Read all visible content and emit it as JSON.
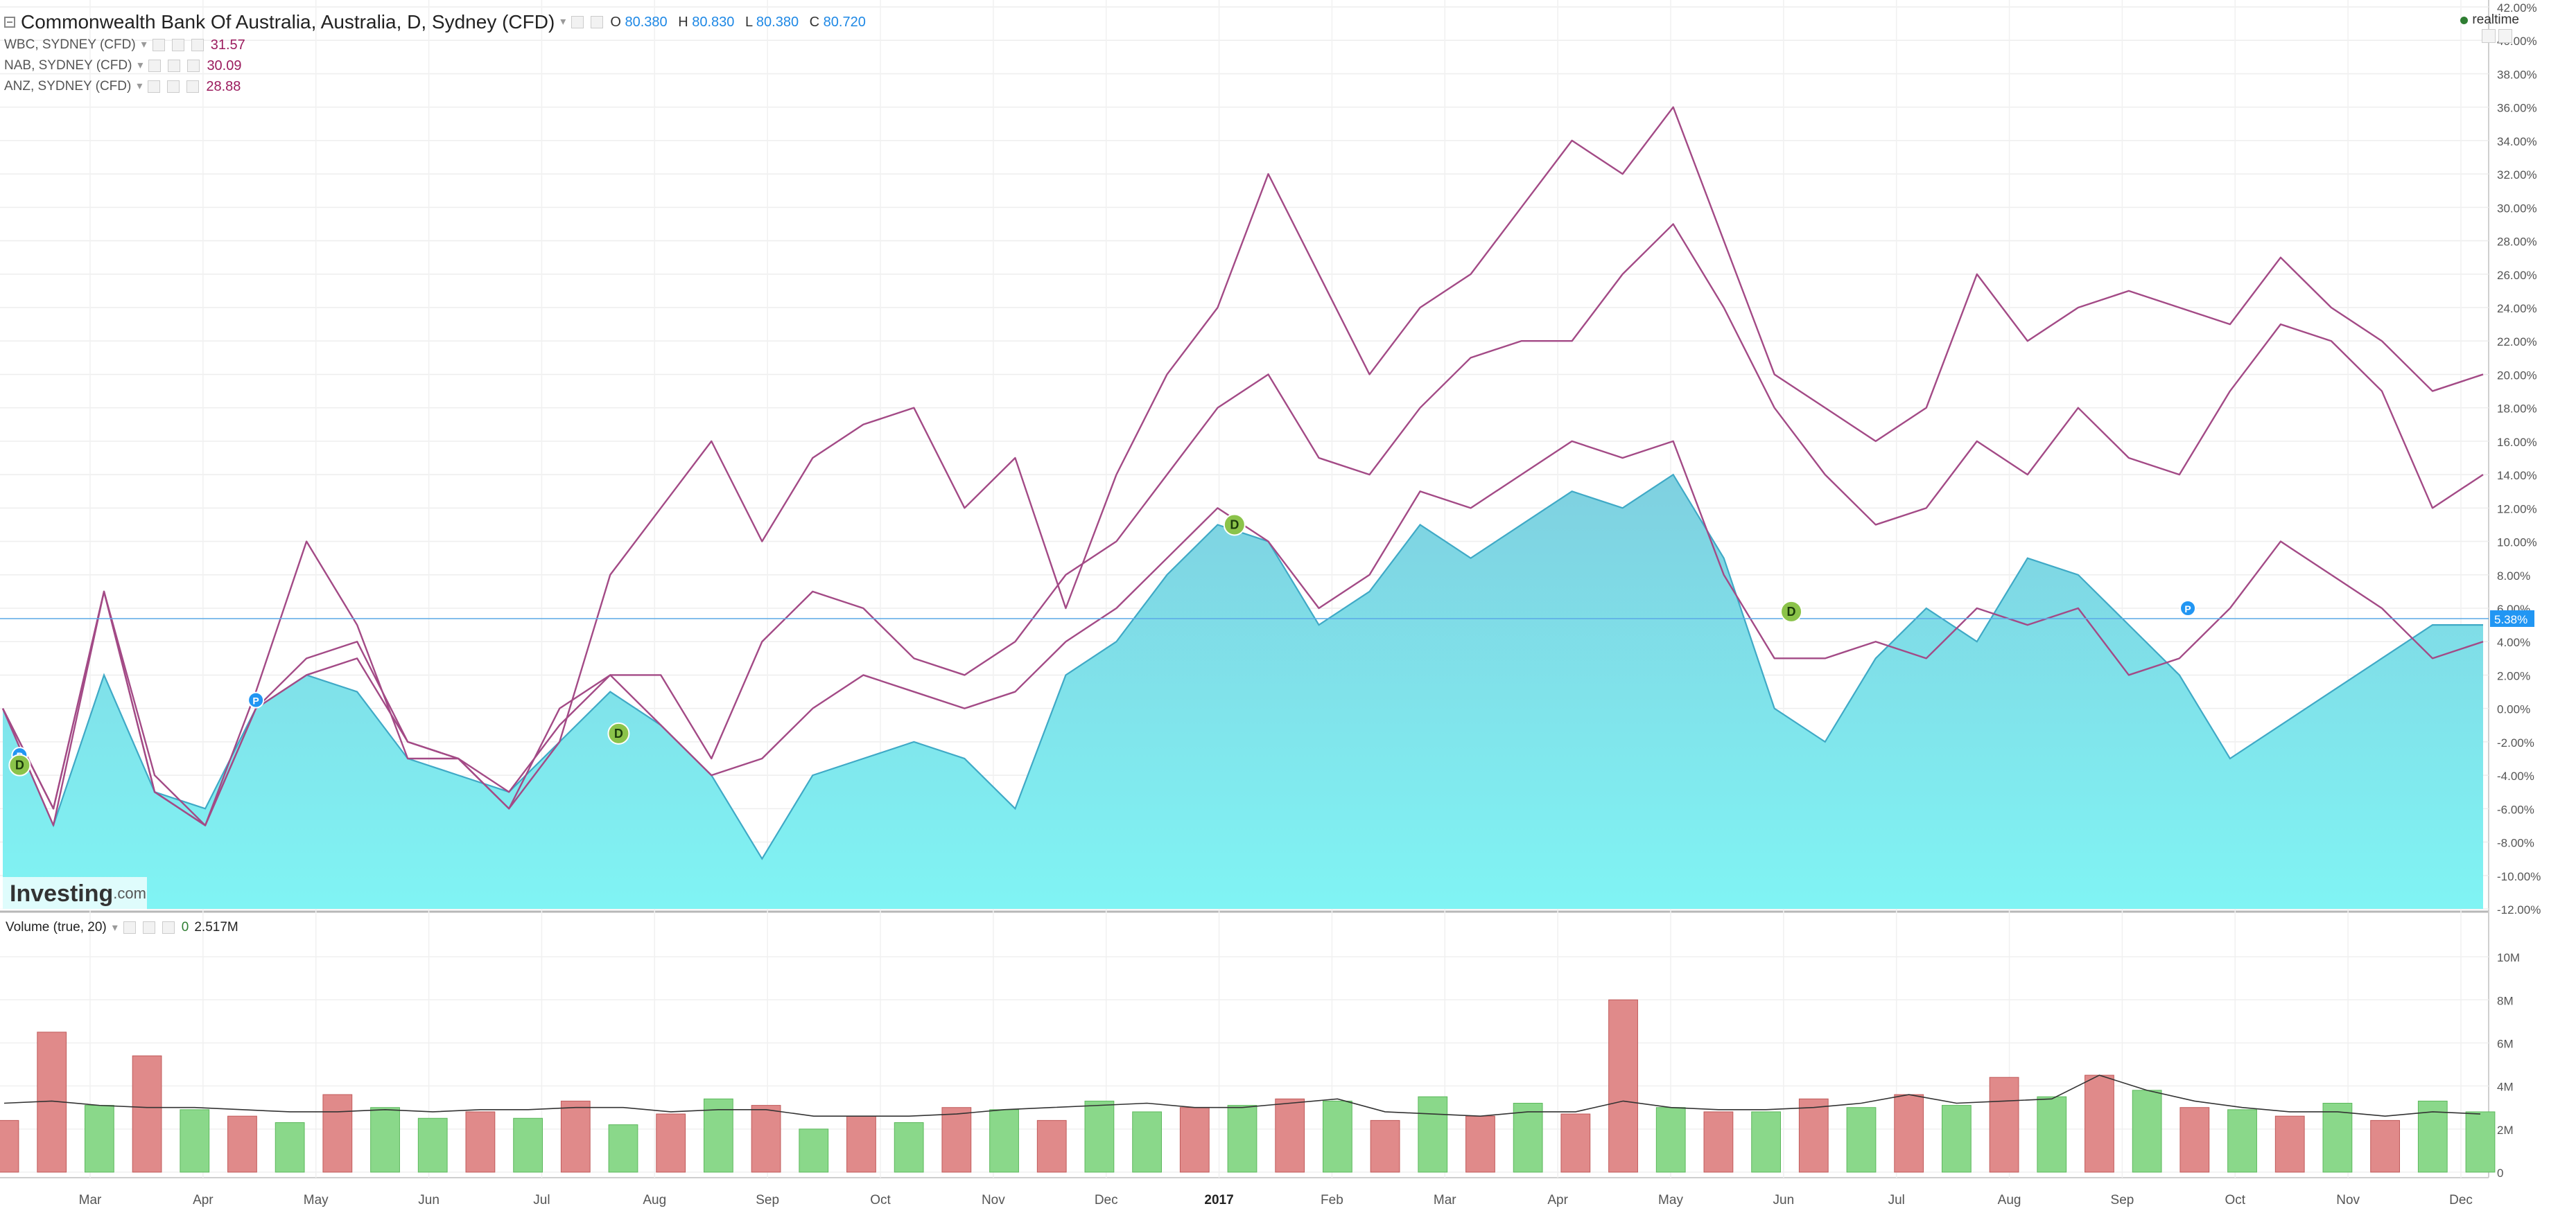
{
  "legend": {
    "main_title": "Commonwealth Bank Of Australia, Australia, D, Sydney (CFD)",
    "ohlc": {
      "o_label": "O",
      "o": "80.380",
      "h_label": "H",
      "h": "80.830",
      "l_label": "L",
      "l": "80.380",
      "c_label": "C",
      "c": "80.720"
    },
    "series": [
      {
        "label": "WBC, SYDNEY (CFD)",
        "value": "31.57"
      },
      {
        "label": "NAB, SYDNEY (CFD)",
        "value": "30.09"
      },
      {
        "label": "ANZ, SYDNEY (CFD)",
        "value": "28.88"
      }
    ]
  },
  "realtime_label": "realtime",
  "watermark": {
    "brand": "Investing",
    "suffix": ".com"
  },
  "volume_legend": {
    "label": "Volume (true, 20)",
    "value_prefix": "0",
    "value": "2.517M"
  },
  "colors": {
    "area_top": "#7fd0e0",
    "area_bottom": "#80f4f4",
    "area_line": "#3fa9c6",
    "compare": "#a34a86",
    "vol_up": "#8ad88a",
    "vol_down": "#e08a8a",
    "price_line": "#5aa9e6",
    "badge_blue": "#2196f3",
    "badge_green": "#8bc34a"
  },
  "chart_data": [
    {
      "type": "line",
      "title": "Commonwealth Bank Of Australia, Australia, D, Sydney (CFD)",
      "y_unit": "%",
      "ylim": [
        -12,
        42
      ],
      "y_ticks": [
        "42.00%",
        "40.00%",
        "38.00%",
        "36.00%",
        "34.00%",
        "32.00%",
        "30.00%",
        "28.00%",
        "26.00%",
        "24.00%",
        "22.00%",
        "20.00%",
        "18.00%",
        "16.00%",
        "14.00%",
        "12.00%",
        "10.00%",
        "8.00%",
        "6.00%",
        "4.00%",
        "2.00%",
        "0.00%",
        "-2.00%",
        "-4.00%",
        "-6.00%",
        "-8.00%",
        "-10.00%",
        "-12.00%"
      ],
      "x_ticks": [
        "Mar",
        "Apr",
        "May",
        "Jun",
        "Jul",
        "Aug",
        "Sep",
        "Oct",
        "Nov",
        "Dec",
        "2017",
        "Feb",
        "Mar",
        "Apr",
        "May",
        "Jun",
        "Jul",
        "Aug",
        "Sep",
        "Oct",
        "Nov",
        "Dec"
      ],
      "x": [
        0,
        6,
        12,
        18,
        24,
        30,
        36,
        42,
        48,
        54,
        60,
        66,
        72,
        78,
        84,
        90,
        96,
        102,
        108,
        114,
        120,
        126,
        132,
        138,
        144,
        150,
        156,
        162,
        168,
        174,
        180,
        186,
        192,
        198,
        204,
        210,
        216,
        222,
        228,
        234,
        240,
        246,
        252,
        258,
        264,
        270,
        276,
        282,
        288,
        294
      ],
      "current_value_label": "5.38%",
      "current_value": 5.38,
      "series": [
        {
          "name": "WBC, SYDNEY (CFD)",
          "role": "compare",
          "values": [
            0,
            -7,
            7,
            -4,
            -7,
            1,
            10,
            5,
            -3,
            -3,
            -6,
            -2,
            8,
            12,
            16,
            10,
            15,
            17,
            18,
            12,
            15,
            6,
            14,
            20,
            24,
            32,
            26,
            20,
            24,
            26,
            30,
            34,
            32,
            36,
            28,
            20,
            18,
            16,
            18,
            26,
            22,
            24,
            25,
            24,
            23,
            27,
            24,
            22,
            19,
            20
          ]
        },
        {
          "name": "NAB, SYDNEY (CFD)",
          "role": "compare",
          "values": [
            0,
            -6,
            7,
            -5,
            -7,
            0,
            3,
            4,
            -2,
            -3,
            -6,
            0,
            2,
            2,
            -3,
            4,
            7,
            6,
            3,
            2,
            4,
            8,
            10,
            14,
            18,
            20,
            15,
            14,
            18,
            21,
            22,
            22,
            26,
            29,
            24,
            18,
            14,
            11,
            12,
            16,
            14,
            18,
            15,
            14,
            19,
            23,
            22,
            19,
            12,
            14
          ]
        },
        {
          "name": "ANZ, SYDNEY (CFD)",
          "role": "compare",
          "values": [
            0,
            -6,
            7,
            -5,
            -7,
            0,
            2,
            3,
            -2,
            -3,
            -5,
            -1,
            2,
            -1,
            -4,
            -3,
            0,
            2,
            1,
            0,
            1,
            4,
            6,
            9,
            12,
            10,
            6,
            8,
            13,
            12,
            14,
            16,
            15,
            16,
            8,
            3,
            3,
            4,
            3,
            6,
            5,
            6,
            2,
            3,
            6,
            10,
            8,
            6,
            3,
            4
          ]
        },
        {
          "name": "Commonwealth Bank Of Australia",
          "role": "main_area",
          "values": [
            0,
            -7,
            2,
            -5,
            -6,
            0,
            2,
            1,
            -3,
            -4,
            -5,
            -2,
            1,
            -1,
            -4,
            -9,
            -4,
            -3,
            -2,
            -3,
            -6,
            2,
            4,
            8,
            11,
            10,
            5,
            7,
            11,
            9,
            11,
            13,
            12,
            14,
            9,
            0,
            -2,
            3,
            6,
            4,
            9,
            8,
            5,
            2,
            -3,
            -1,
            1,
            3,
            5,
            5
          ]
        }
      ],
      "markers": [
        {
          "label": "P",
          "kind": "split",
          "x": 2,
          "y": -2.8
        },
        {
          "label": "D",
          "kind": "dividend",
          "x": 2,
          "y": -3.4
        },
        {
          "label": "P",
          "kind": "split",
          "x": 30,
          "y": 0.5
        },
        {
          "label": "D",
          "kind": "dividend",
          "x": 73,
          "y": -1.5
        },
        {
          "label": "D",
          "kind": "dividend",
          "x": 146,
          "y": 11
        },
        {
          "label": "D",
          "kind": "dividend",
          "x": 212,
          "y": 5.8
        },
        {
          "label": "P",
          "kind": "split",
          "x": 259,
          "y": 6
        }
      ]
    },
    {
      "type": "bar",
      "title": "Volume (true, 20)",
      "ylim": [
        0,
        11000000
      ],
      "y_ticks": [
        "0",
        "2M",
        "4M",
        "6M",
        "8M",
        "10M"
      ],
      "x_ticks": [
        "Mar",
        "Apr",
        "May",
        "Jun",
        "Jul",
        "Aug",
        "Sep",
        "Oct",
        "Nov",
        "Dec",
        "2017",
        "Feb",
        "Mar",
        "Apr",
        "May",
        "Jun",
        "Jul",
        "Aug",
        "Sep",
        "Oct",
        "Nov",
        "Dec"
      ],
      "x": [
        0,
        5,
        10,
        15,
        20,
        25,
        30,
        35,
        40,
        45,
        50,
        55,
        60,
        65,
        70,
        75,
        80,
        85,
        90,
        95,
        100,
        105,
        110,
        115,
        120,
        125,
        130,
        135,
        140,
        145,
        150,
        155,
        160,
        165,
        170,
        175,
        180,
        185,
        190,
        195,
        200,
        205,
        210,
        215,
        220,
        225,
        230,
        235,
        240,
        245,
        250,
        255,
        260
      ],
      "values": [
        2400000,
        6500000,
        3100000,
        5400000,
        2900000,
        2600000,
        2300000,
        3600000,
        3000000,
        2500000,
        2800000,
        2500000,
        3300000,
        2200000,
        2700000,
        3400000,
        3100000,
        2000000,
        2600000,
        2300000,
        3000000,
        2900000,
        2400000,
        3300000,
        2800000,
        3000000,
        3100000,
        3400000,
        3300000,
        2400000,
        3500000,
        2600000,
        3200000,
        2700000,
        8000000,
        3000000,
        2800000,
        2800000,
        3400000,
        3000000,
        3600000,
        3100000,
        4400000,
        3500000,
        4500000,
        3800000,
        3000000,
        2900000,
        2600000,
        3200000,
        2400000,
        3300000,
        2800000
      ],
      "colors": [
        "down",
        "down",
        "up",
        "down",
        "up",
        "down",
        "up",
        "down",
        "up",
        "up",
        "down",
        "up",
        "down",
        "up",
        "down",
        "up",
        "down",
        "up",
        "down",
        "up",
        "down",
        "up",
        "down",
        "up",
        "up",
        "down",
        "up",
        "down",
        "up",
        "down",
        "up",
        "down",
        "up",
        "down",
        "down",
        "up",
        "down",
        "up",
        "down",
        "up",
        "down",
        "up",
        "down",
        "up",
        "down",
        "up",
        "down",
        "up",
        "down",
        "up",
        "down",
        "up",
        "up"
      ],
      "ma_values": [
        3200000,
        3300000,
        3100000,
        3000000,
        3000000,
        2900000,
        2800000,
        2800000,
        2900000,
        2800000,
        2900000,
        2900000,
        3000000,
        3000000,
        2800000,
        2900000,
        2900000,
        2600000,
        2600000,
        2600000,
        2700000,
        2900000,
        3000000,
        3100000,
        3200000,
        3000000,
        3000000,
        3200000,
        3400000,
        2800000,
        2700000,
        2600000,
        2800000,
        2800000,
        3300000,
        3000000,
        2900000,
        2900000,
        3000000,
        3200000,
        3600000,
        3200000,
        3300000,
        3400000,
        4500000,
        3800000,
        3300000,
        3000000,
        2800000,
        2800000,
        2600000,
        2800000,
        2700000
      ]
    }
  ]
}
